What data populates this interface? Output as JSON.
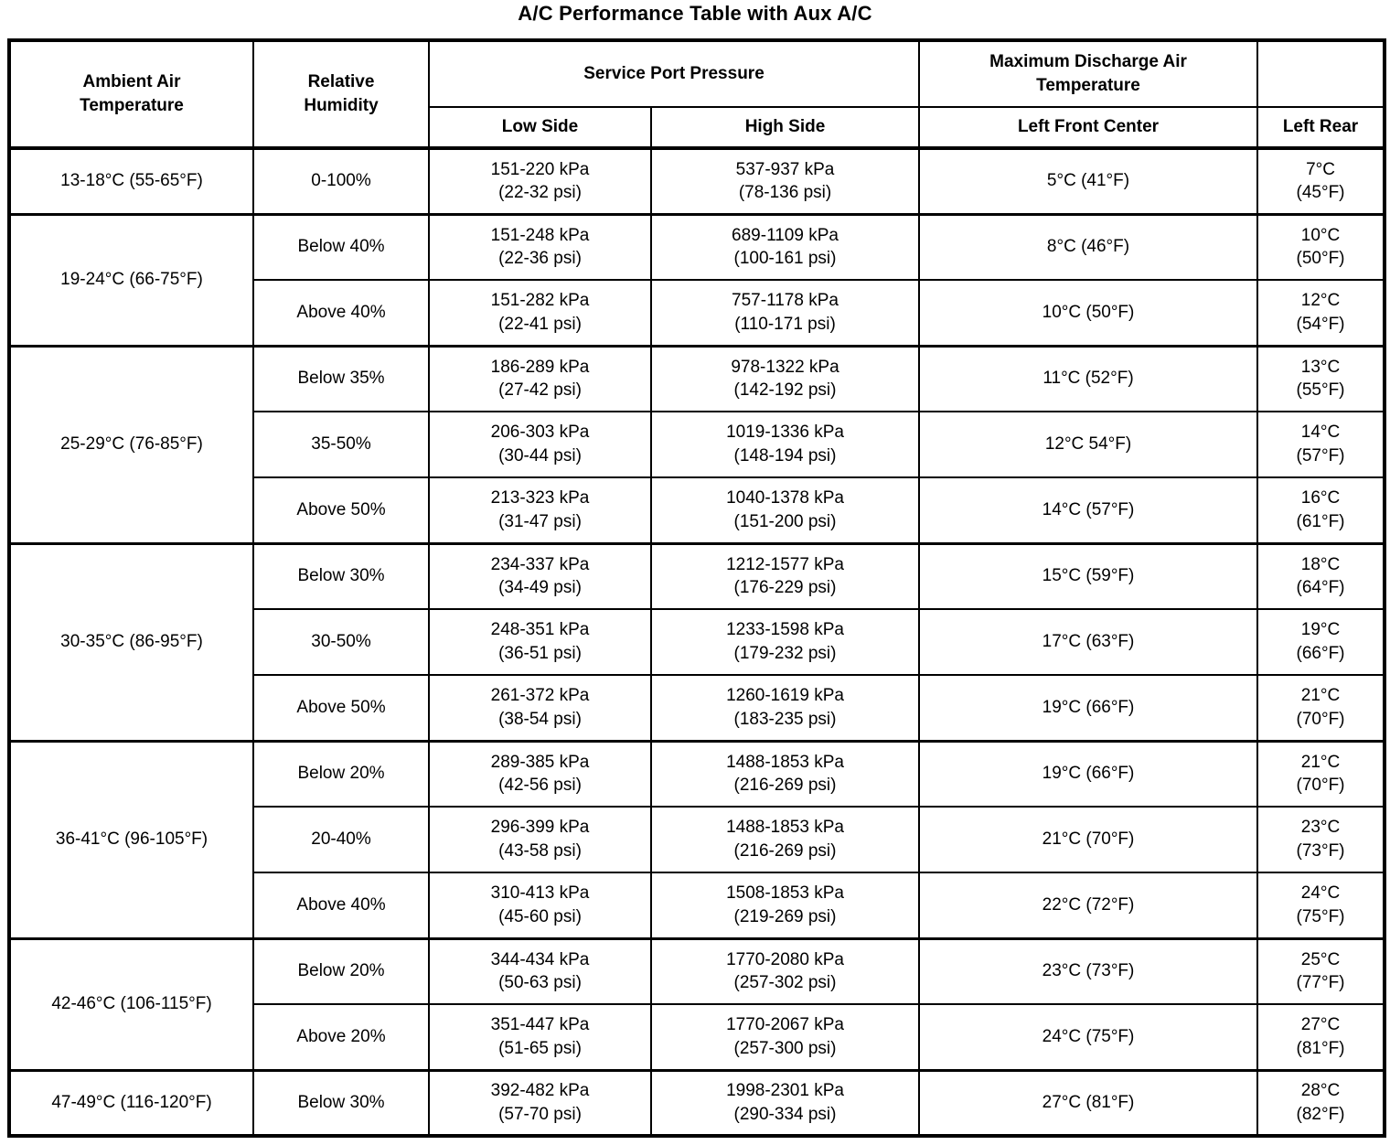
{
  "title": "A/C Performance Table with Aux A/C",
  "table": {
    "headers": {
      "ambient": "Ambient Air\nTemperature",
      "humidity": "Relative\nHumidity",
      "service_port_pressure": "Service Port Pressure",
      "low_side": "Low Side",
      "high_side": "High Side",
      "max_discharge": "Maximum Discharge Air\nTemperature",
      "left_front_center": "Left Front Center",
      "left_rear": "Left Rear"
    },
    "groups": [
      {
        "ambient": "13-18°C (55-65°F)",
        "rows": [
          {
            "humidity": "0-100%",
            "low_side": "151-220 kPa\n(22-32 psi)",
            "high_side": "537-937 kPa\n(78-136 psi)",
            "left_front_center": "5°C (41°F)",
            "left_rear": "7°C\n(45°F)"
          }
        ]
      },
      {
        "ambient": "19-24°C (66-75°F)",
        "rows": [
          {
            "humidity": "Below 40%",
            "low_side": "151-248 kPa\n(22-36 psi)",
            "high_side": "689-1109 kPa\n(100-161 psi)",
            "left_front_center": "8°C (46°F)",
            "left_rear": "10°C\n(50°F)"
          },
          {
            "humidity": "Above 40%",
            "low_side": "151-282 kPa\n(22-41 psi)",
            "high_side": "757-1178 kPa\n(110-171 psi)",
            "left_front_center": "10°C (50°F)",
            "left_rear": "12°C\n(54°F)"
          }
        ]
      },
      {
        "ambient": "25-29°C (76-85°F)",
        "rows": [
          {
            "humidity": "Below 35%",
            "low_side": "186-289 kPa\n(27-42 psi)",
            "high_side": "978-1322 kPa\n(142-192 psi)",
            "left_front_center": "11°C (52°F)",
            "left_rear": "13°C\n(55°F)"
          },
          {
            "humidity": "35-50%",
            "low_side": "206-303 kPa\n(30-44 psi)",
            "high_side": "1019-1336 kPa\n(148-194 psi)",
            "left_front_center": "12°C 54°F)",
            "left_rear": "14°C\n(57°F)"
          },
          {
            "humidity": "Above 50%",
            "low_side": "213-323 kPa\n(31-47 psi)",
            "high_side": "1040-1378 kPa\n(151-200 psi)",
            "left_front_center": "14°C (57°F)",
            "left_rear": "16°C\n(61°F)"
          }
        ]
      },
      {
        "ambient": "30-35°C (86-95°F)",
        "rows": [
          {
            "humidity": "Below 30%",
            "low_side": "234-337 kPa\n(34-49 psi)",
            "high_side": "1212-1577 kPa\n(176-229 psi)",
            "left_front_center": "15°C (59°F)",
            "left_rear": "18°C\n(64°F)"
          },
          {
            "humidity": "30-50%",
            "low_side": "248-351 kPa\n(36-51 psi)",
            "high_side": "1233-1598 kPa\n(179-232 psi)",
            "left_front_center": "17°C (63°F)",
            "left_rear": "19°C\n(66°F)"
          },
          {
            "humidity": "Above 50%",
            "low_side": "261-372 kPa\n(38-54 psi)",
            "high_side": "1260-1619 kPa\n(183-235 psi)",
            "left_front_center": "19°C (66°F)",
            "left_rear": "21°C\n(70°F)"
          }
        ]
      },
      {
        "ambient": "36-41°C (96-105°F)",
        "rows": [
          {
            "humidity": "Below 20%",
            "low_side": "289-385 kPa\n(42-56 psi)",
            "high_side": "1488-1853 kPa\n(216-269 psi)",
            "left_front_center": "19°C (66°F)",
            "left_rear": "21°C\n(70°F)"
          },
          {
            "humidity": "20-40%",
            "low_side": "296-399 kPa\n(43-58 psi)",
            "high_side": "1488-1853 kPa\n(216-269 psi)",
            "left_front_center": "21°C (70°F)",
            "left_rear": "23°C\n(73°F)"
          },
          {
            "humidity": "Above 40%",
            "low_side": "310-413 kPa\n(45-60 psi)",
            "high_side": "1508-1853 kPa\n(219-269 psi)",
            "left_front_center": "22°C (72°F)",
            "left_rear": "24°C\n(75°F)"
          }
        ]
      },
      {
        "ambient": "42-46°C (106-115°F)",
        "rows": [
          {
            "humidity": "Below 20%",
            "low_side": "344-434 kPa\n(50-63 psi)",
            "high_side": "1770-2080 kPa\n(257-302 psi)",
            "left_front_center": "23°C (73°F)",
            "left_rear": "25°C\n(77°F)"
          },
          {
            "humidity": "Above 20%",
            "low_side": "351-447 kPa\n(51-65 psi)",
            "high_side": "1770-2067 kPa\n(257-300 psi)",
            "left_front_center": "24°C (75°F)",
            "left_rear": "27°C\n(81°F)"
          }
        ]
      },
      {
        "ambient": "47-49°C (116-120°F)",
        "rows": [
          {
            "humidity": "Below 30%",
            "low_side": "392-482 kPa\n(57-70 psi)",
            "high_side": "1998-2301 kPa\n(290-334 psi)",
            "left_front_center": "27°C (81°F)",
            "left_rear": "28°C\n(82°F)"
          }
        ]
      }
    ]
  }
}
